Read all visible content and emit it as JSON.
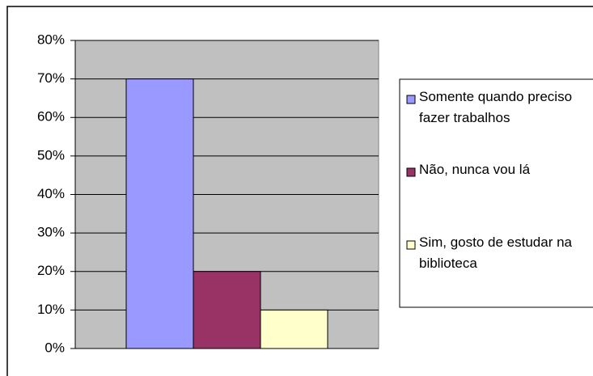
{
  "chart_data": {
    "type": "bar",
    "categories": [
      null
    ],
    "series": [
      {
        "name": "Somente quando preciso fazer trabalhos",
        "color": "#9999ff",
        "values": [
          70
        ]
      },
      {
        "name": "Não, nunca vou lá",
        "color": "#993366",
        "values": [
          20
        ]
      },
      {
        "name": "Sim, gosto de estudar na biblioteca",
        "color": "#ffffcc",
        "values": [
          10
        ]
      }
    ],
    "ylim": [
      0,
      80
    ],
    "yticks": [
      {
        "value": 0,
        "label": "0%"
      },
      {
        "value": 10,
        "label": "10%"
      },
      {
        "value": 20,
        "label": "20%"
      },
      {
        "value": 30,
        "label": "30%"
      },
      {
        "value": 40,
        "label": "40%"
      },
      {
        "value": 50,
        "label": "50%"
      },
      {
        "value": 60,
        "label": "60%"
      },
      {
        "value": 70,
        "label": "70%"
      },
      {
        "value": 80,
        "label": "80%"
      }
    ],
    "grid": true,
    "legend": "right",
    "plot_background": "#c0c0c0"
  }
}
